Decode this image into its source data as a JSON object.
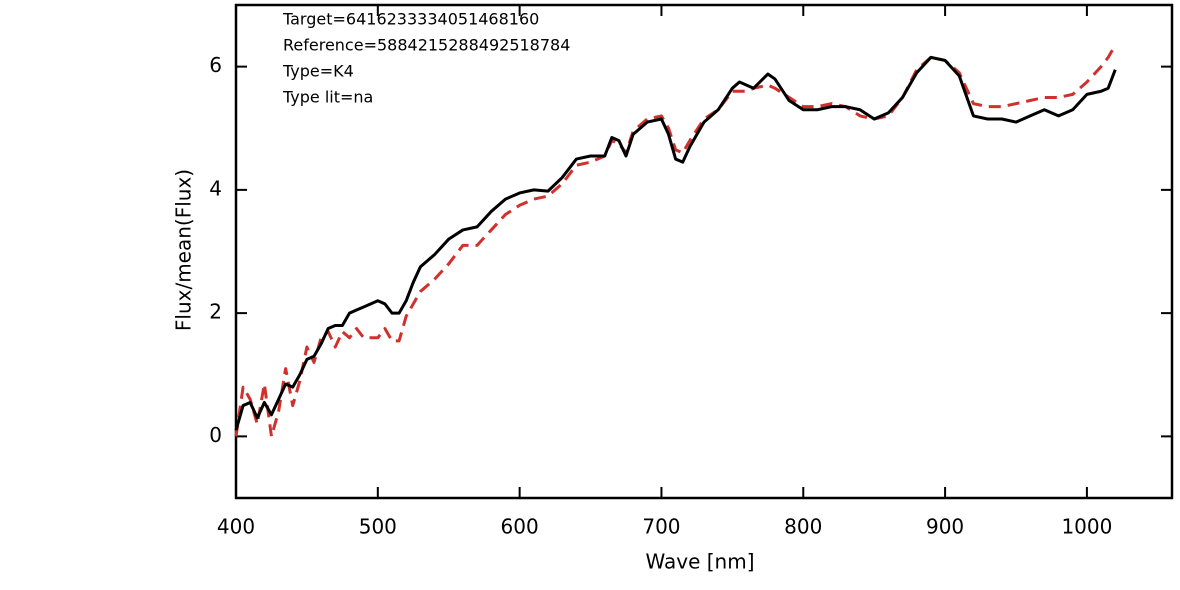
{
  "chart_data": {
    "type": "line",
    "x_label": "Wave [nm]",
    "y_label": "Flux/mean(Flux)",
    "annotations": [
      "Target=6416233334051468160",
      "Reference=5884215288492518784",
      "Type=K4",
      "Type lit=na"
    ],
    "x": [
      400,
      405,
      410,
      415,
      420,
      425,
      430,
      435,
      440,
      445,
      450,
      455,
      460,
      465,
      470,
      475,
      480,
      485,
      490,
      500,
      505,
      510,
      515,
      520,
      525,
      530,
      540,
      550,
      560,
      570,
      580,
      590,
      600,
      610,
      620,
      630,
      640,
      650,
      660,
      665,
      670,
      675,
      680,
      690,
      700,
      705,
      710,
      715,
      720,
      730,
      740,
      750,
      755,
      760,
      765,
      775,
      780,
      790,
      800,
      810,
      820,
      830,
      840,
      850,
      860,
      870,
      880,
      890,
      900,
      910,
      920,
      930,
      940,
      950,
      960,
      970,
      980,
      990,
      1000,
      1010,
      1015,
      1020
    ],
    "series": [
      {
        "color": "#000000",
        "dashed": false,
        "values": [
          0.1,
          0.5,
          0.55,
          0.3,
          0.55,
          0.35,
          0.6,
          0.85,
          0.8,
          1.0,
          1.25,
          1.3,
          1.5,
          1.75,
          1.8,
          1.8,
          2.0,
          2.05,
          2.1,
          2.2,
          2.15,
          2.0,
          2.0,
          2.2,
          2.5,
          2.75,
          2.95,
          3.2,
          3.35,
          3.4,
          3.65,
          3.85,
          3.95,
          4.0,
          3.98,
          4.2,
          4.5,
          4.55,
          4.55,
          4.85,
          4.8,
          4.55,
          4.9,
          5.1,
          5.15,
          4.9,
          4.5,
          4.45,
          4.7,
          5.1,
          5.3,
          5.65,
          5.75,
          5.7,
          5.65,
          5.88,
          5.8,
          5.45,
          5.3,
          5.3,
          5.35,
          5.35,
          5.3,
          5.15,
          5.25,
          5.5,
          5.9,
          6.15,
          6.1,
          5.85,
          5.2,
          5.15,
          5.15,
          5.1,
          5.2,
          5.3,
          5.2,
          5.3,
          5.55,
          5.6,
          5.65,
          5.95
        ]
      },
      {
        "color": "#d0312d",
        "dashed": true,
        "values": [
          0.0,
          0.8,
          0.6,
          0.2,
          0.85,
          0.0,
          0.4,
          1.1,
          0.5,
          0.9,
          1.45,
          1.2,
          1.6,
          1.7,
          1.45,
          1.7,
          1.6,
          1.75,
          1.6,
          1.6,
          1.75,
          1.55,
          1.55,
          1.95,
          2.15,
          2.35,
          2.55,
          2.8,
          3.1,
          3.1,
          3.35,
          3.6,
          3.75,
          3.85,
          3.9,
          4.1,
          4.4,
          4.45,
          4.55,
          4.8,
          4.75,
          4.6,
          4.95,
          5.15,
          5.2,
          5.0,
          4.65,
          4.6,
          4.8,
          5.15,
          5.3,
          5.6,
          5.6,
          5.6,
          5.65,
          5.7,
          5.65,
          5.5,
          5.35,
          5.35,
          5.4,
          5.35,
          5.2,
          5.15,
          5.2,
          5.5,
          5.95,
          6.15,
          6.1,
          5.9,
          5.4,
          5.35,
          5.35,
          5.4,
          5.45,
          5.5,
          5.5,
          5.55,
          5.75,
          6.0,
          6.15,
          6.35
        ]
      }
    ],
    "xlim": [
      400,
      1060
    ],
    "ylim": [
      -1,
      7
    ],
    "xticks": [
      400,
      500,
      600,
      700,
      800,
      900,
      1000
    ],
    "yticks": [
      0,
      2,
      4,
      6
    ],
    "grid": false
  }
}
